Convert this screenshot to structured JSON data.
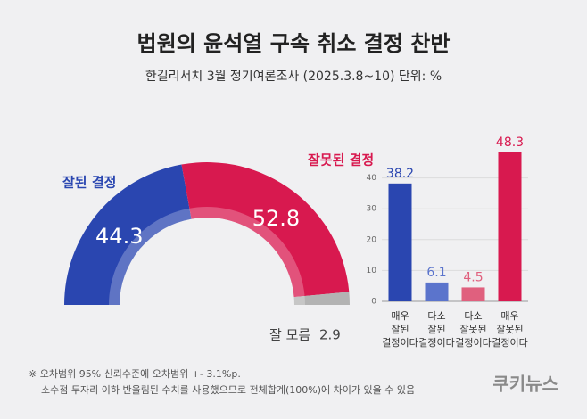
{
  "title": "법원의 윤석열 구속 취소 결정 찬반",
  "subtitle": "한길리서치 3월 정기여론조사 (2025.3.8~10) 단위: %",
  "chart_data": [
    {
      "type": "half-donut",
      "categories": [
        "잘된 결정",
        "잘못된 결정",
        "잘 모름"
      ],
      "values": [
        44.3,
        52.8,
        2.9
      ],
      "colors": [
        "#2a46b0",
        "#d8194f",
        "#b3b3b3"
      ]
    },
    {
      "type": "bar",
      "categories": [
        [
          "매우",
          "잘된",
          "결정이다"
        ],
        [
          "다소",
          "잘된",
          "결정이다"
        ],
        [
          "다소",
          "잘못된",
          "결정이다"
        ],
        [
          "매우",
          "잘못된",
          "결정이다"
        ]
      ],
      "values": [
        38.2,
        6.1,
        4.5,
        48.3
      ],
      "colors": [
        "#2a46b0",
        "#5b74cc",
        "#e0607e",
        "#d8194f"
      ],
      "ylim": [
        0,
        50
      ],
      "yticks": [
        0,
        10,
        20,
        30,
        40
      ],
      "grid": true
    }
  ],
  "footnote": [
    "※ 오차범위 95% 신뢰수준에 오차범위 +- 3.1%p.",
    "소수점 두자리 이하 반올림된 수치를 사용했으므로 전체합계(100%)에 차이가 있을 수 있음"
  ],
  "logo": "쿠키뉴스"
}
